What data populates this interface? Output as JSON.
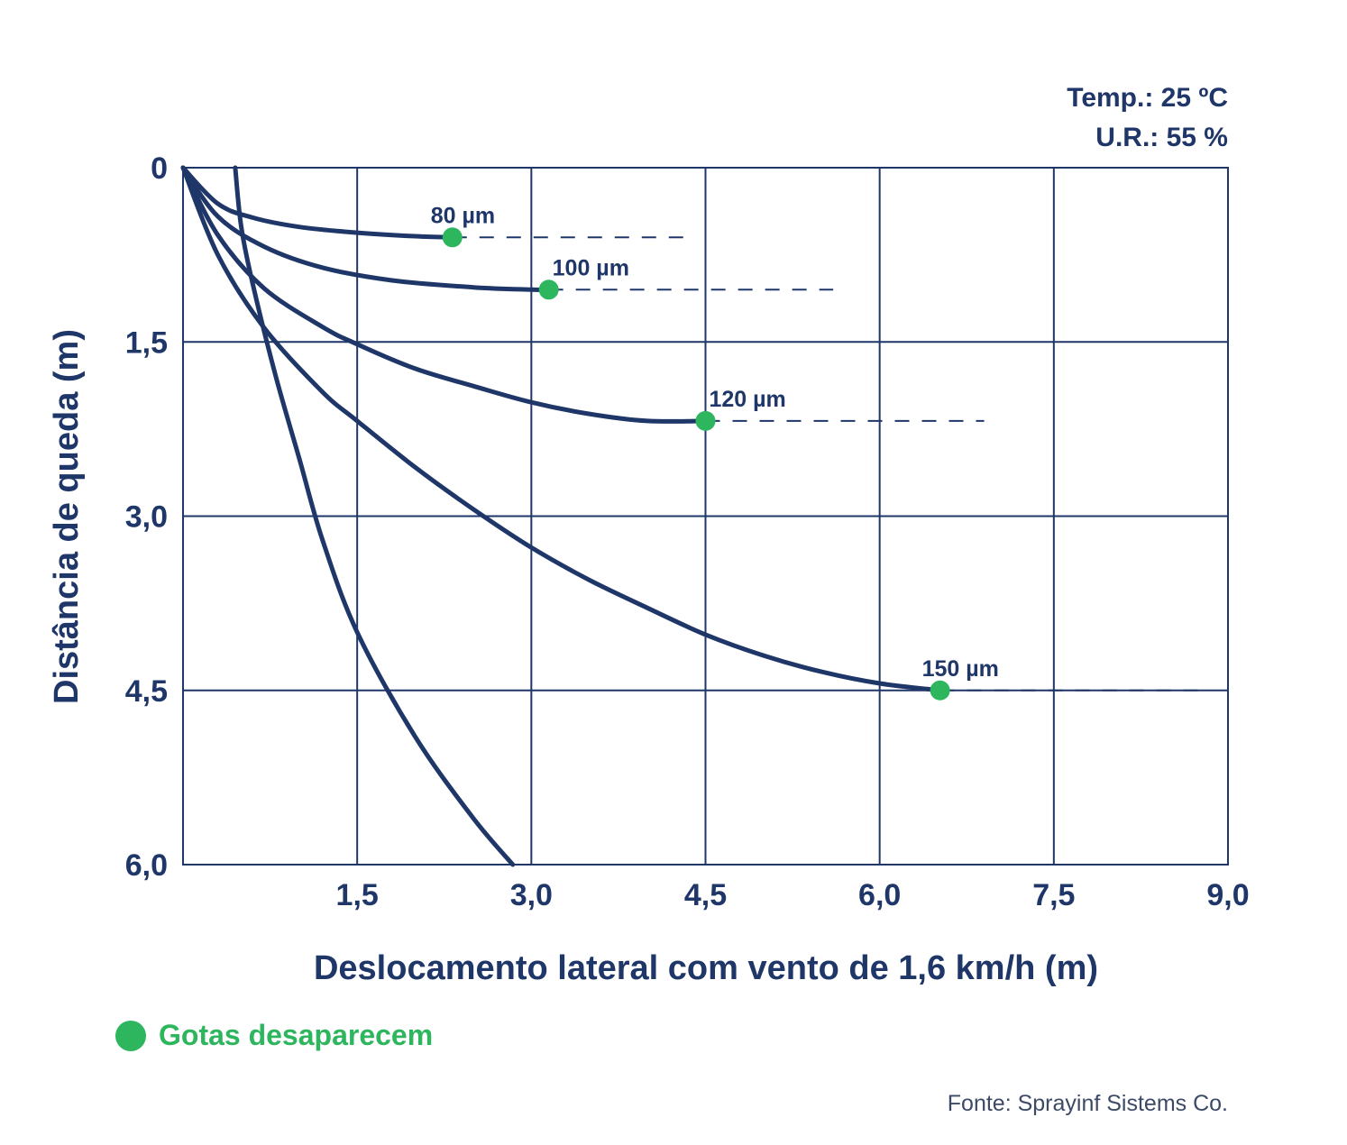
{
  "chart_data": {
    "type": "line",
    "xlabel": "Deslocamento lateral com vento de 1,6 km/h (m)",
    "ylabel": "Distância de queda (m)",
    "xlim": [
      0,
      9.0
    ],
    "ylim": [
      0,
      6.0
    ],
    "y_inverted": true,
    "x_ticks": [
      "1,5",
      "3,0",
      "4,5",
      "6,0",
      "7,5",
      "9,0"
    ],
    "y_ticks": [
      "0",
      "1,5",
      "3,0",
      "4,5",
      "6,0"
    ],
    "conditions": [
      "Temp.: 25 ºC",
      "U.R.: 55 %"
    ],
    "grid": true,
    "series": [
      {
        "name": "80 µm",
        "x": [
          0,
          0.3,
          0.6,
          1.0,
          1.5,
          2.0,
          2.32
        ],
        "y": [
          0,
          0.31,
          0.43,
          0.51,
          0.56,
          0.59,
          0.6
        ],
        "end": {
          "x": 2.32,
          "y": 0.6
        },
        "dash_to": 4.4
      },
      {
        "name": "100 µm",
        "x": [
          0,
          0.3,
          0.7,
          1.2,
          1.8,
          2.5,
          3.0,
          3.15
        ],
        "y": [
          0,
          0.42,
          0.68,
          0.86,
          0.97,
          1.03,
          1.05,
          1.05
        ],
        "end": {
          "x": 3.15,
          "y": 1.05
        },
        "dash_to": 5.6
      },
      {
        "name": "120 µm",
        "x": [
          0,
          0.3,
          0.7,
          1.2,
          1.5,
          2.0,
          2.5,
          3.0,
          3.5,
          4.0,
          4.5
        ],
        "y": [
          0,
          0.58,
          1.04,
          1.37,
          1.52,
          1.73,
          1.88,
          2.02,
          2.12,
          2.18,
          2.18
        ],
        "end": {
          "x": 4.5,
          "y": 2.18
        },
        "dash_to": 6.9
      },
      {
        "name": "150 µm",
        "x": [
          0,
          0.3,
          0.7,
          1.2,
          1.5,
          2.0,
          2.5,
          3.0,
          3.5,
          4.0,
          4.5,
          5.0,
          5.5,
          6.0,
          6.52
        ],
        "y": [
          0,
          0.75,
          1.38,
          1.93,
          2.18,
          2.58,
          2.94,
          3.27,
          3.55,
          3.79,
          4.02,
          4.2,
          4.34,
          4.44,
          4.5
        ],
        "end": {
          "x": 6.52,
          "y": 4.5
        },
        "dash_to": 8.8
      },
      {
        "name": "",
        "x": [
          0.45,
          0.5,
          0.6,
          0.8,
          1.0,
          1.2,
          1.5,
          2.0,
          2.5,
          2.84
        ],
        "y": [
          0,
          0.5,
          1.0,
          1.8,
          2.5,
          3.2,
          4.0,
          4.9,
          5.6,
          6.0
        ]
      }
    ]
  },
  "legend": {
    "label": "Gotas desaparecem"
  },
  "source": "Fonte: Sprayinf Sistems Co.",
  "colors": {
    "line": "#1f3668",
    "marker": "#2db65d",
    "text": "#1f3668"
  }
}
